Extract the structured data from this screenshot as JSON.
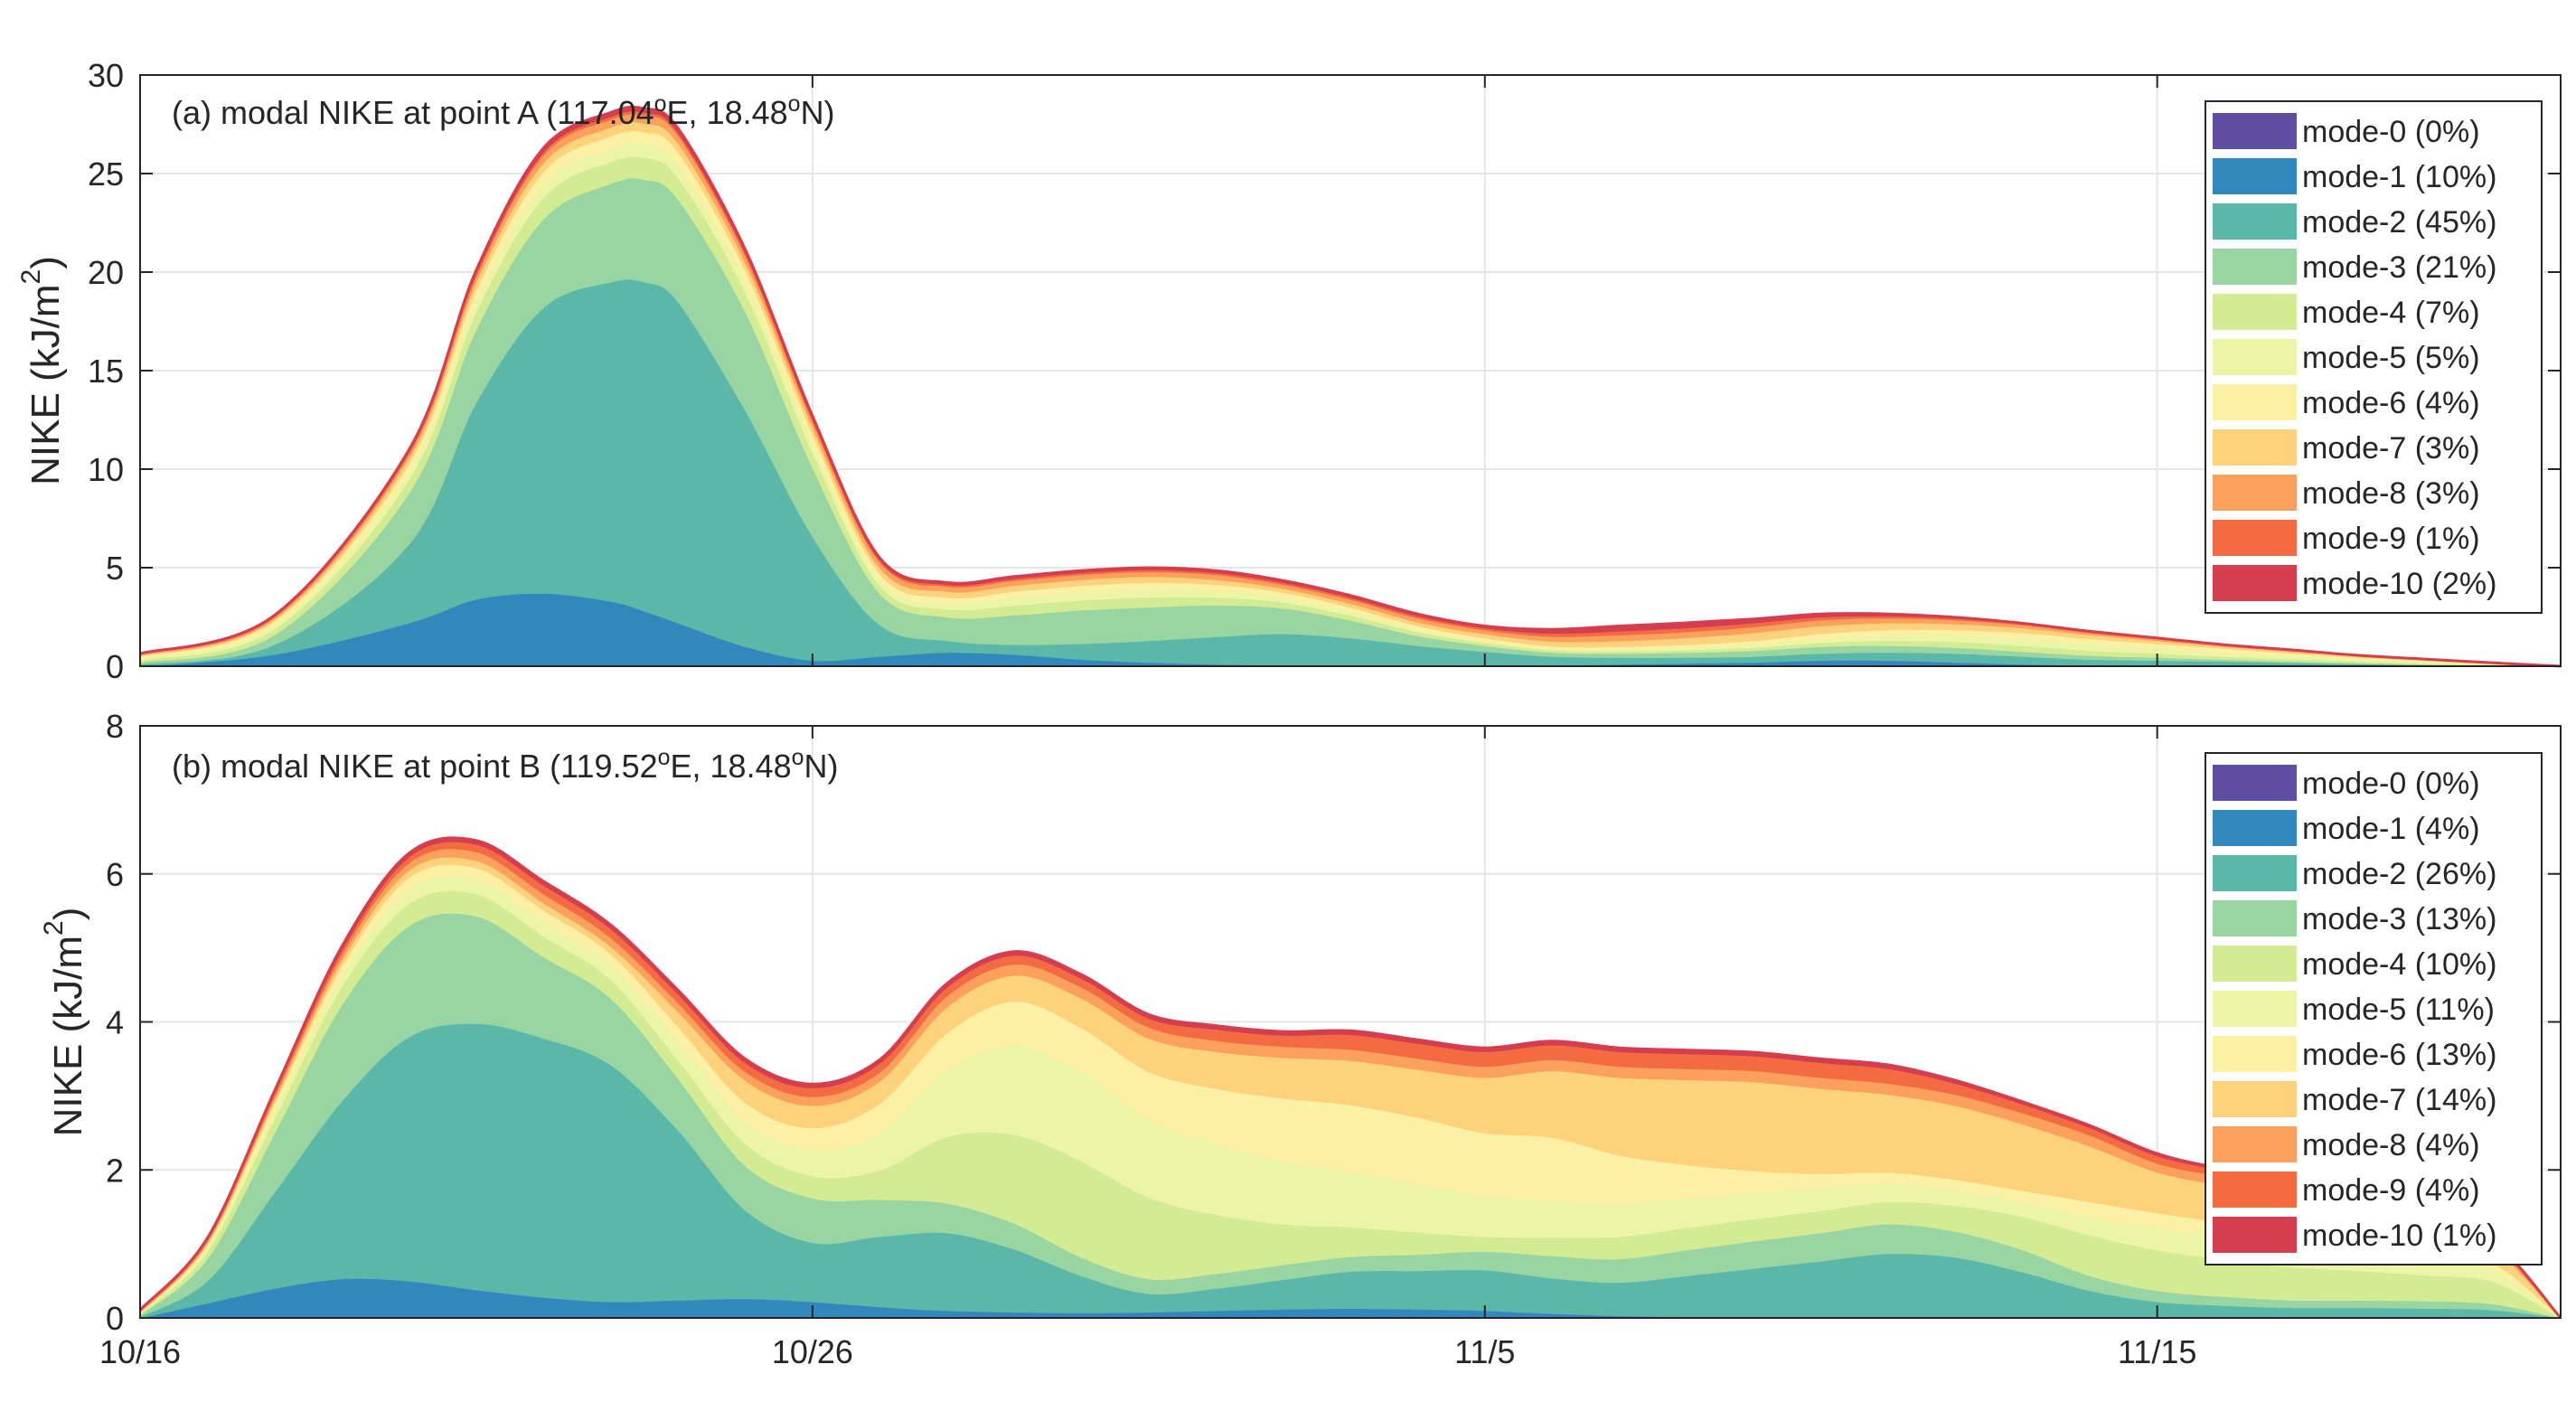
{
  "chart_data": [
    {
      "type": "area",
      "stacked": true,
      "title_pre": "(a) modal NIKE at point A (117.04",
      "title_mid": "E, 18.48",
      "title_post": "N)",
      "title_sup": "o",
      "ylabel": "NIKE (kJ/m",
      "ylabel_sup": "2",
      "ylabel_post": ")",
      "ylim": [
        0,
        30
      ],
      "yticks": [
        "0",
        "5",
        "10",
        "15",
        "20",
        "25",
        "30"
      ],
      "xlim": [
        0,
        36
      ],
      "x_tick_positions": [
        0,
        10,
        20,
        30
      ],
      "x_tick_labels": [
        "10/16",
        "10/26",
        "11/5",
        "11/15"
      ],
      "legend_position": "top-right",
      "x": [
        0,
        2,
        4,
        5,
        6,
        7,
        7.5,
        8,
        9,
        10,
        11,
        12,
        13,
        14,
        15,
        16,
        17,
        18,
        19,
        20,
        21,
        22,
        23,
        24,
        25,
        26,
        27,
        28,
        29,
        30,
        31,
        32,
        33,
        34,
        35,
        36
      ],
      "series": [
        {
          "name": "mode-0",
          "label": "mode-0 (0%)",
          "color": "#5e4fa2",
          "values": [
            0,
            0,
            0,
            0,
            0,
            0,
            0,
            0,
            0,
            0,
            0,
            0,
            0,
            0,
            0,
            0,
            0,
            0,
            0,
            0,
            0,
            0,
            0,
            0,
            0,
            0,
            0,
            0,
            0,
            0,
            0,
            0,
            0,
            0,
            0,
            0
          ]
        },
        {
          "name": "mode-1",
          "label": "mode-1 (10%)",
          "color": "#3288bd",
          "values": [
            0,
            0.6,
            2.2,
            3.4,
            3.7,
            3.3,
            2.8,
            2.2,
            1.0,
            0.3,
            0.5,
            0.7,
            0.6,
            0.35,
            0.2,
            0.1,
            0.05,
            0.04,
            0.05,
            0.05,
            0.05,
            0.1,
            0.15,
            0.2,
            0.3,
            0.3,
            0.2,
            0.1,
            0.05,
            0.05,
            0.05,
            0.03,
            0.02,
            0.02,
            0.01,
            0
          ]
        },
        {
          "name": "mode-2",
          "label": "mode-2 (45%)",
          "color": "#5bb7a8",
          "values": [
            0.1,
            0.5,
            4.0,
            10.0,
            14.5,
            16.2,
            16.7,
            16.3,
            12.0,
            6.3,
            1.6,
            0.6,
            0.5,
            0.8,
            1.1,
            1.4,
            1.6,
            1.4,
            1.0,
            0.7,
            0.45,
            0.35,
            0.3,
            0.3,
            0.35,
            0.4,
            0.45,
            0.4,
            0.3,
            0.25,
            0.2,
            0.15,
            0.1,
            0.05,
            0.02,
            0
          ]
        },
        {
          "name": "mode-3",
          "label": "mode-3 (21%)",
          "color": "#98d5a2",
          "values": [
            0.1,
            0.5,
            2.6,
            3.7,
            4.5,
            5.0,
            5.2,
            5.2,
            5.0,
            3.5,
            1.6,
            1.2,
            1.5,
            1.7,
            1.7,
            1.6,
            1.3,
            0.9,
            0.5,
            0.3,
            0.2,
            0.2,
            0.25,
            0.3,
            0.35,
            0.35,
            0.3,
            0.25,
            0.2,
            0.15,
            0.1,
            0.07,
            0.05,
            0.03,
            0.01,
            0
          ]
        },
        {
          "name": "mode-4",
          "label": "mode-4 (7%)",
          "color": "#d3ec94",
          "values": [
            0.1,
            0.3,
            0.7,
            0.9,
            1.1,
            1.1,
            1.1,
            1.1,
            1.0,
            0.8,
            0.4,
            0.4,
            0.5,
            0.5,
            0.5,
            0.4,
            0.3,
            0.25,
            0.2,
            0.15,
            0.12,
            0.12,
            0.13,
            0.15,
            0.2,
            0.25,
            0.3,
            0.3,
            0.25,
            0.2,
            0.15,
            0.12,
            0.08,
            0.05,
            0.02,
            0
          ]
        },
        {
          "name": "mode-5",
          "label": "mode-5 (5%)",
          "color": "#ebf5a5",
          "values": [
            0.1,
            0.2,
            0.4,
            0.6,
            0.7,
            0.7,
            0.7,
            0.7,
            0.6,
            0.5,
            0.3,
            0.3,
            0.4,
            0.4,
            0.4,
            0.35,
            0.25,
            0.2,
            0.15,
            0.12,
            0.1,
            0.1,
            0.12,
            0.15,
            0.2,
            0.25,
            0.3,
            0.35,
            0.3,
            0.25,
            0.2,
            0.15,
            0.1,
            0.07,
            0.03,
            0
          ]
        },
        {
          "name": "mode-6",
          "label": "mode-6 (4%)",
          "color": "#fbf0a3",
          "values": [
            0.1,
            0.2,
            0.4,
            0.5,
            0.6,
            0.6,
            0.6,
            0.6,
            0.5,
            0.4,
            0.3,
            0.3,
            0.3,
            0.35,
            0.35,
            0.3,
            0.25,
            0.2,
            0.15,
            0.12,
            0.1,
            0.12,
            0.15,
            0.2,
            0.25,
            0.3,
            0.3,
            0.3,
            0.3,
            0.25,
            0.2,
            0.15,
            0.1,
            0.07,
            0.03,
            0
          ]
        },
        {
          "name": "mode-7",
          "label": "mode-7 (3%)",
          "color": "#fdd27d",
          "values": [
            0.05,
            0.1,
            0.3,
            0.4,
            0.45,
            0.45,
            0.45,
            0.45,
            0.4,
            0.35,
            0.3,
            0.3,
            0.3,
            0.3,
            0.3,
            0.25,
            0.2,
            0.2,
            0.2,
            0.2,
            0.25,
            0.3,
            0.35,
            0.4,
            0.4,
            0.35,
            0.3,
            0.25,
            0.2,
            0.15,
            0.1,
            0.08,
            0.05,
            0.03,
            0.02,
            0
          ]
        },
        {
          "name": "mode-8",
          "label": "mode-8 (3%)",
          "color": "#fca05d",
          "values": [
            0.05,
            0.1,
            0.2,
            0.3,
            0.4,
            0.4,
            0.4,
            0.4,
            0.35,
            0.3,
            0.3,
            0.25,
            0.25,
            0.25,
            0.25,
            0.25,
            0.2,
            0.2,
            0.2,
            0.2,
            0.25,
            0.3,
            0.3,
            0.3,
            0.3,
            0.25,
            0.2,
            0.15,
            0.1,
            0.08,
            0.05,
            0.04,
            0.03,
            0.02,
            0.01,
            0
          ]
        },
        {
          "name": "mode-9",
          "label": "mode-9 (1%)",
          "color": "#f26b43",
          "values": [
            0.02,
            0.05,
            0.1,
            0.15,
            0.15,
            0.15,
            0.15,
            0.15,
            0.15,
            0.1,
            0.1,
            0.1,
            0.1,
            0.1,
            0.1,
            0.1,
            0.1,
            0.1,
            0.1,
            0.1,
            0.15,
            0.2,
            0.2,
            0.2,
            0.15,
            0.1,
            0.08,
            0.05,
            0.04,
            0.03,
            0.02,
            0.02,
            0.01,
            0.01,
            0.01,
            0
          ]
        },
        {
          "name": "mode-10",
          "label": "mode-10 (2%)",
          "color": "#d53e4f",
          "values": [
            0.02,
            0.04,
            0.1,
            0.15,
            0.2,
            0.2,
            0.2,
            0.2,
            0.15,
            0.15,
            0.1,
            0.1,
            0.1,
            0.1,
            0.1,
            0.1,
            0.1,
            0.1,
            0.1,
            0.1,
            0.2,
            0.25,
            0.25,
            0.2,
            0.15,
            0.1,
            0.05,
            0.03,
            0.03,
            0.02,
            0.02,
            0.02,
            0.01,
            0.01,
            0.01,
            0
          ]
        }
      ]
    },
    {
      "type": "area",
      "stacked": true,
      "title_pre": "(b) modal NIKE at point B (119.52",
      "title_mid": "E, 18.48",
      "title_post": "N)",
      "title_sup": "o",
      "ylabel": "NIKE (kJ/m",
      "ylabel_sup": "2",
      "ylabel_post": ")",
      "ylim": [
        0,
        8
      ],
      "yticks": [
        "0",
        "2",
        "4",
        "6",
        "8"
      ],
      "xlim": [
        0,
        36
      ],
      "x_tick_positions": [
        0,
        10,
        20,
        30
      ],
      "x_tick_labels": [
        "10/16",
        "10/26",
        "11/5",
        "11/15"
      ],
      "legend_position": "top-right",
      "x": [
        0,
        1,
        2,
        3,
        4,
        5,
        6,
        7,
        8,
        9,
        10,
        11,
        12,
        13,
        14,
        15,
        16,
        17,
        18,
        19,
        20,
        21,
        22,
        23,
        24,
        25,
        26,
        27,
        28,
        29,
        30,
        31,
        32,
        33,
        34,
        35,
        36
      ],
      "series": [
        {
          "name": "mode-0",
          "label": "mode-0 (0%)",
          "color": "#5e4fa2",
          "values": [
            0,
            0,
            0,
            0,
            0,
            0,
            0,
            0,
            0,
            0,
            0,
            0,
            0,
            0,
            0,
            0,
            0,
            0,
            0,
            0,
            0,
            0,
            0,
            0,
            0,
            0,
            0,
            0,
            0,
            0,
            0,
            0,
            0,
            0,
            0,
            0,
            0
          ]
        },
        {
          "name": "mode-1",
          "label": "mode-1 (4%)",
          "color": "#3288bd",
          "values": [
            0,
            0.2,
            0.4,
            0.53,
            0.5,
            0.38,
            0.28,
            0.22,
            0.24,
            0.26,
            0.22,
            0.15,
            0.1,
            0.08,
            0.07,
            0.08,
            0.1,
            0.12,
            0.13,
            0.12,
            0.1,
            0.06,
            0.03,
            0.02,
            0.02,
            0.02,
            0.02,
            0.02,
            0.02,
            0.02,
            0.02,
            0.02,
            0.02,
            0.02,
            0.01,
            0.01,
            0
          ]
        },
        {
          "name": "mode-2",
          "label": "mode-2 (26%)",
          "color": "#5bb7a8",
          "values": [
            0.02,
            0.3,
            1.3,
            2.4,
            3.3,
            3.6,
            3.5,
            3.2,
            2.3,
            1.2,
            0.8,
            0.95,
            1.05,
            0.85,
            0.5,
            0.25,
            0.3,
            0.4,
            0.5,
            0.52,
            0.55,
            0.48,
            0.45,
            0.55,
            0.65,
            0.75,
            0.85,
            0.8,
            0.6,
            0.35,
            0.2,
            0.15,
            0.12,
            0.12,
            0.12,
            0.1,
            0
          ]
        },
        {
          "name": "mode-3",
          "label": "mode-3 (13%)",
          "color": "#98d5a2",
          "values": [
            0.02,
            0.3,
            0.8,
            1.3,
            1.5,
            1.45,
            1.1,
            0.9,
            0.7,
            0.6,
            0.6,
            0.5,
            0.4,
            0.35,
            0.25,
            0.2,
            0.2,
            0.2,
            0.2,
            0.22,
            0.25,
            0.3,
            0.32,
            0.35,
            0.37,
            0.38,
            0.4,
            0.35,
            0.3,
            0.2,
            0.15,
            0.12,
            0.1,
            0.1,
            0.1,
            0.08,
            0
          ]
        },
        {
          "name": "mode-4",
          "label": "mode-4 (10%)",
          "color": "#d3ec94",
          "values": [
            0.01,
            0.1,
            0.2,
            0.25,
            0.3,
            0.3,
            0.28,
            0.25,
            0.25,
            0.3,
            0.3,
            0.4,
            0.9,
            1.2,
            1.3,
            1.1,
            0.8,
            0.55,
            0.4,
            0.3,
            0.2,
            0.25,
            0.3,
            0.3,
            0.3,
            0.3,
            0.3,
            0.35,
            0.45,
            0.55,
            0.55,
            0.5,
            0.45,
            0.4,
            0.35,
            0.3,
            0
          ]
        },
        {
          "name": "mode-5",
          "label": "mode-5 (11%)",
          "color": "#ebf5a5",
          "values": [
            0.01,
            0.05,
            0.1,
            0.15,
            0.2,
            0.2,
            0.2,
            0.2,
            0.25,
            0.3,
            0.35,
            0.5,
            0.9,
            1.2,
            1.2,
            1.05,
            0.95,
            0.85,
            0.75,
            0.65,
            0.55,
            0.5,
            0.45,
            0.4,
            0.35,
            0.3,
            0.25,
            0.2,
            0.2,
            0.25,
            0.3,
            0.3,
            0.3,
            0.25,
            0.2,
            0.15,
            0
          ]
        },
        {
          "name": "mode-6",
          "label": "mode-6 (13%)",
          "color": "#fbf0a3",
          "values": [
            0.01,
            0.04,
            0.1,
            0.12,
            0.15,
            0.15,
            0.15,
            0.15,
            0.2,
            0.25,
            0.3,
            0.4,
            0.5,
            0.6,
            0.6,
            0.65,
            0.75,
            0.85,
            0.9,
            0.9,
            0.85,
            0.85,
            0.65,
            0.45,
            0.3,
            0.2,
            0.15,
            0.15,
            0.15,
            0.2,
            0.2,
            0.2,
            0.18,
            0.15,
            0.12,
            0.1,
            0
          ]
        },
        {
          "name": "mode-7",
          "label": "mode-7 (14%)",
          "color": "#fdd27d",
          "values": [
            0.01,
            0.03,
            0.05,
            0.08,
            0.1,
            0.1,
            0.1,
            0.1,
            0.2,
            0.3,
            0.3,
            0.3,
            0.35,
            0.35,
            0.4,
            0.45,
            0.5,
            0.55,
            0.6,
            0.65,
            0.75,
            0.9,
            1.05,
            1.15,
            1.2,
            1.15,
            1.05,
            1.0,
            0.9,
            0.75,
            0.55,
            0.5,
            0.5,
            0.45,
            0.35,
            0.2,
            0
          ]
        },
        {
          "name": "mode-8",
          "label": "mode-8 (4%)",
          "color": "#fca05d",
          "values": [
            0.01,
            0.02,
            0.05,
            0.08,
            0.1,
            0.12,
            0.12,
            0.12,
            0.12,
            0.12,
            0.12,
            0.12,
            0.15,
            0.15,
            0.15,
            0.15,
            0.15,
            0.15,
            0.15,
            0.15,
            0.15,
            0.15,
            0.15,
            0.15,
            0.15,
            0.15,
            0.15,
            0.15,
            0.15,
            0.15,
            0.12,
            0.12,
            0.1,
            0.08,
            0.06,
            0.05,
            0
          ]
        },
        {
          "name": "mode-9",
          "label": "mode-9 (4%)",
          "color": "#f26b43",
          "values": [
            0.01,
            0.02,
            0.04,
            0.06,
            0.08,
            0.1,
            0.12,
            0.12,
            0.12,
            0.12,
            0.12,
            0.12,
            0.12,
            0.12,
            0.12,
            0.12,
            0.15,
            0.15,
            0.2,
            0.2,
            0.2,
            0.2,
            0.2,
            0.2,
            0.2,
            0.2,
            0.2,
            0.15,
            0.12,
            0.1,
            0.1,
            0.08,
            0.06,
            0.05,
            0.04,
            0.03,
            0
          ]
        },
        {
          "name": "mode-10",
          "label": "mode-10 (1%)",
          "color": "#d53e4f",
          "values": [
            0.01,
            0.02,
            0.03,
            0.05,
            0.05,
            0.05,
            0.05,
            0.05,
            0.05,
            0.05,
            0.05,
            0.05,
            0.05,
            0.05,
            0.05,
            0.05,
            0.05,
            0.05,
            0.05,
            0.05,
            0.05,
            0.05,
            0.05,
            0.05,
            0.05,
            0.05,
            0.05,
            0.04,
            0.03,
            0.03,
            0.03,
            0.02,
            0.02,
            0.02,
            0.02,
            0.02,
            0
          ]
        }
      ]
    }
  ]
}
